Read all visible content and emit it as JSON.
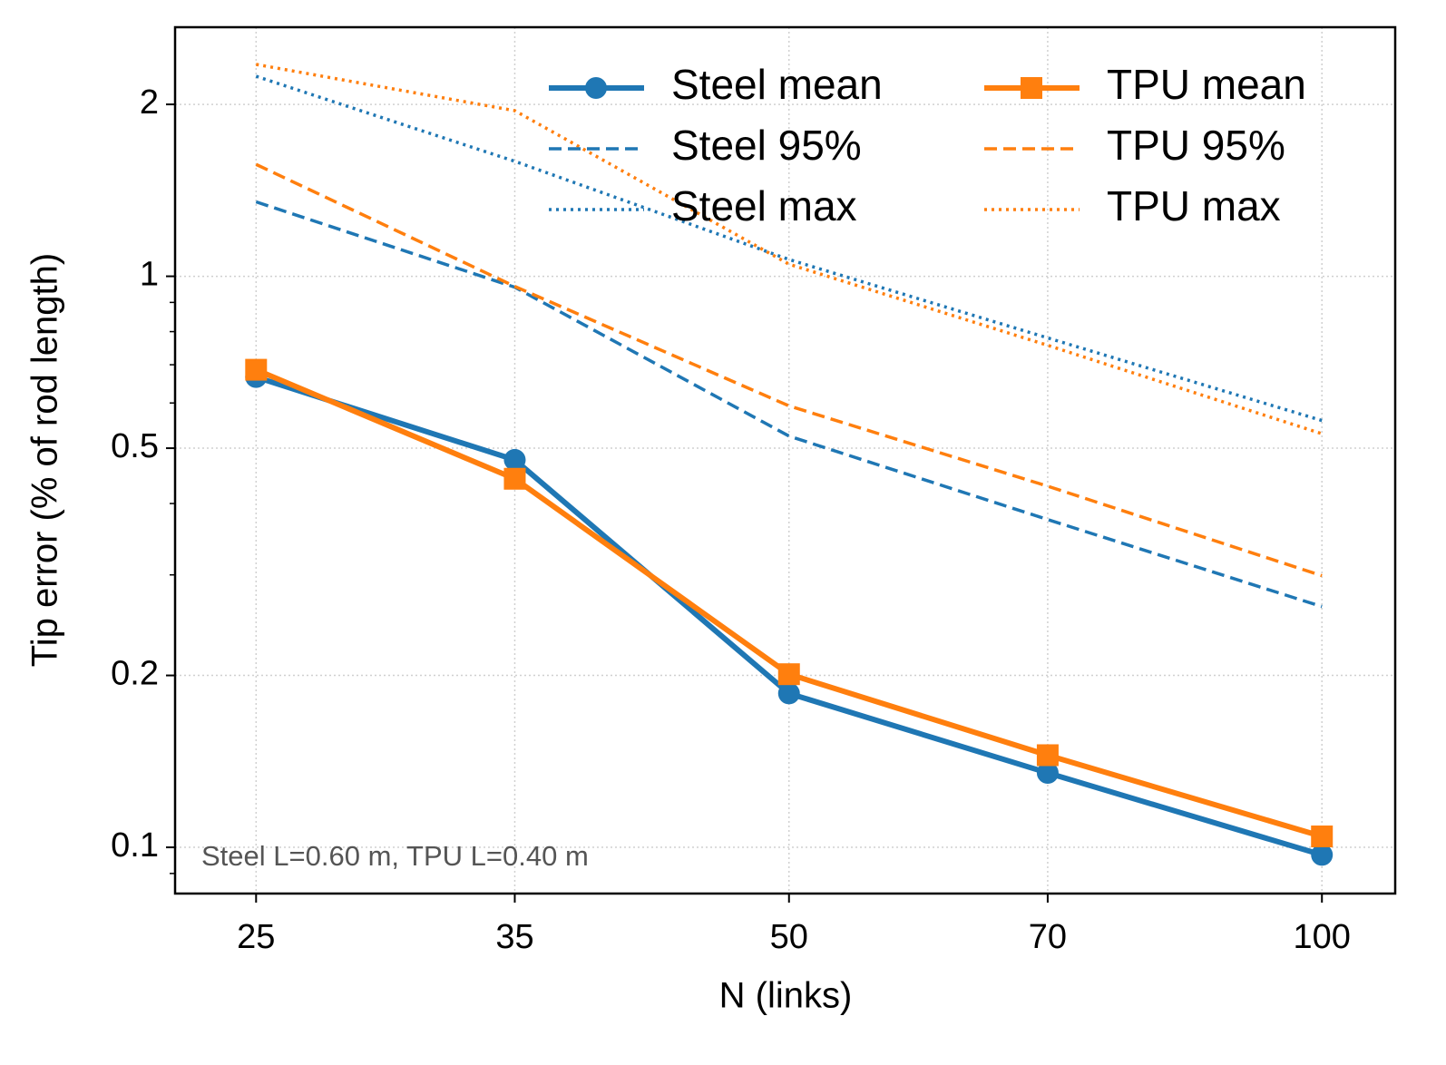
{
  "chart_data": {
    "type": "line",
    "xlabel": "N (links)",
    "ylabel": "Tip error (% of rod length)",
    "annotation": "Steel L=0.60 m, TPU L=0.40 m",
    "x": [
      25,
      35,
      50,
      70,
      100
    ],
    "xscale": "log",
    "yscale": "log",
    "xlim": [
      22.5,
      110
    ],
    "ylim": [
      0.083,
      2.73
    ],
    "xticks": [
      25,
      35,
      50,
      70,
      100
    ],
    "yticks": [
      0.1,
      0.2,
      0.5,
      1,
      2
    ],
    "yminorticks": [
      0.09,
      0.3,
      0.4,
      0.6,
      0.7,
      0.8,
      0.9
    ],
    "grid": true,
    "legend": "upper right",
    "series": [
      {
        "name": "Steel mean",
        "color": "#1f77b4",
        "linestyle": "solid",
        "marker": "circle",
        "values": [
          0.666,
          0.477,
          0.186,
          0.135,
          0.097
        ]
      },
      {
        "name": "Steel 95%",
        "color": "#1f77b4",
        "linestyle": "dashed",
        "values": [
          1.35,
          0.957,
          0.525,
          0.375,
          0.264
        ]
      },
      {
        "name": "Steel max",
        "color": "#1f77b4",
        "linestyle": "dotted",
        "values": [
          2.24,
          1.59,
          1.07,
          0.78,
          0.559
        ]
      },
      {
        "name": "TPU mean",
        "color": "#ff7f0e",
        "linestyle": "solid",
        "marker": "square",
        "values": [
          0.686,
          0.442,
          0.201,
          0.145,
          0.1045
        ]
      },
      {
        "name": "TPU 95%",
        "color": "#ff7f0e",
        "linestyle": "dashed",
        "values": [
          1.57,
          0.96,
          0.593,
          0.429,
          0.299
        ]
      },
      {
        "name": "TPU max",
        "color": "#ff7f0e",
        "linestyle": "dotted",
        "values": [
          2.35,
          1.95,
          1.05,
          0.757,
          0.53
        ]
      }
    ]
  }
}
